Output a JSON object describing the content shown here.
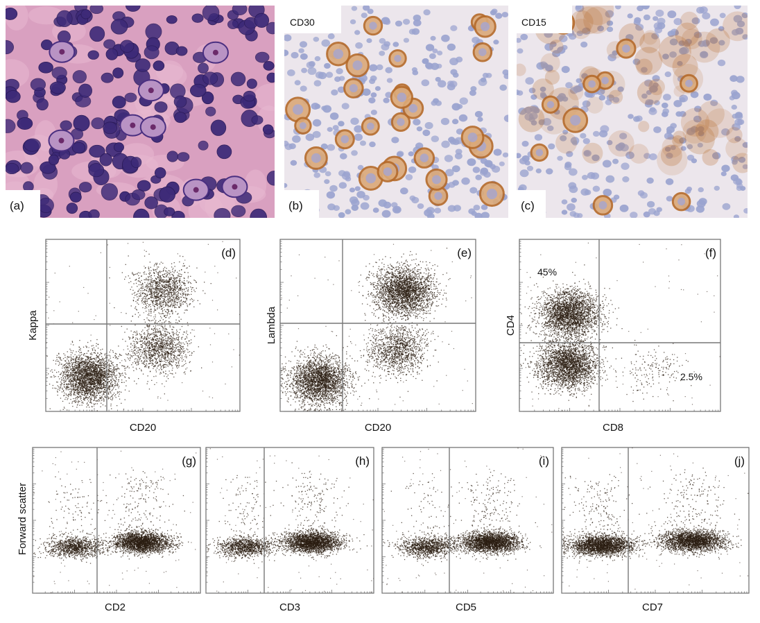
{
  "micrographs": [
    {
      "id": "a",
      "letter": "(a)",
      "stain": "",
      "type": "he"
    },
    {
      "id": "b",
      "letter": "(b)",
      "stain": "CD30",
      "type": "ihc"
    },
    {
      "id": "c",
      "letter": "(c)",
      "stain": "CD15",
      "type": "ihc"
    }
  ],
  "flow_panels": [
    {
      "id": "d",
      "letter": "(d)",
      "xlabel": "CD20",
      "ylabel": "Kappa",
      "quadrant_labels": []
    },
    {
      "id": "e",
      "letter": "(e)",
      "xlabel": "CD20",
      "ylabel": "Lambda",
      "quadrant_labels": []
    },
    {
      "id": "f",
      "letter": "(f)",
      "xlabel": "CD8",
      "ylabel": "CD4",
      "quadrant_labels": [
        "45%",
        "2.5%"
      ]
    },
    {
      "id": "g",
      "letter": "(g)",
      "xlabel": "CD2",
      "ylabel": "Forward scatter",
      "quadrant_labels": []
    },
    {
      "id": "h",
      "letter": "(h)",
      "xlabel": "CD3",
      "ylabel": "",
      "quadrant_labels": []
    },
    {
      "id": "i",
      "letter": "(i)",
      "xlabel": "CD5",
      "ylabel": "",
      "quadrant_labels": []
    },
    {
      "id": "j",
      "letter": "(j)",
      "xlabel": "CD7",
      "ylabel": "",
      "quadrant_labels": []
    }
  ],
  "colors": {
    "he_background": "#d9a0c0",
    "he_nucleus": "#3d2a78",
    "ihc_background": "#ece6ec",
    "ihc_lymphocyte": "#9aa3cf",
    "ihc_stain": "#b56a2a",
    "dot": "#2b1d12"
  },
  "chart_data": [
    {
      "type": "scatter",
      "panel": "d",
      "xlabel": "CD20",
      "ylabel": "Kappa",
      "scale": "log",
      "populations": [
        {
          "x": 0.22,
          "y": 0.2,
          "density": "high"
        },
        {
          "x": 0.58,
          "y": 0.37,
          "density": "medium"
        },
        {
          "x": 0.6,
          "y": 0.7,
          "density": "medium"
        }
      ]
    },
    {
      "type": "scatter",
      "panel": "e",
      "xlabel": "CD20",
      "ylabel": "Lambda",
      "scale": "log",
      "populations": [
        {
          "x": 0.2,
          "y": 0.18,
          "density": "high"
        },
        {
          "x": 0.6,
          "y": 0.36,
          "density": "medium"
        },
        {
          "x": 0.63,
          "y": 0.7,
          "density": "high"
        }
      ]
    },
    {
      "type": "scatter",
      "panel": "f",
      "xlabel": "CD8",
      "ylabel": "CD4",
      "scale": "log",
      "quadrants": {
        "upper_left": "45%",
        "lower_right": "2.5%"
      },
      "populations": [
        {
          "x": 0.25,
          "y": 0.57,
          "density": "high"
        },
        {
          "x": 0.24,
          "y": 0.27,
          "density": "high"
        },
        {
          "x": 0.66,
          "y": 0.24,
          "density": "low"
        }
      ]
    },
    {
      "type": "scatter",
      "panel": "g",
      "xlabel": "CD2",
      "ylabel": "Forward scatter",
      "scale": "log",
      "populations": [
        {
          "x": 0.25,
          "y": 0.32,
          "density": "medium"
        },
        {
          "x": 0.65,
          "y": 0.35,
          "density": "high"
        }
      ]
    },
    {
      "type": "scatter",
      "panel": "h",
      "xlabel": "CD3",
      "ylabel": "Forward scatter",
      "scale": "log",
      "populations": [
        {
          "x": 0.24,
          "y": 0.32,
          "density": "medium"
        },
        {
          "x": 0.63,
          "y": 0.35,
          "density": "high"
        }
      ]
    },
    {
      "type": "scatter",
      "panel": "i",
      "xlabel": "CD5",
      "ylabel": "Forward scatter",
      "scale": "log",
      "populations": [
        {
          "x": 0.27,
          "y": 0.32,
          "density": "medium"
        },
        {
          "x": 0.63,
          "y": 0.35,
          "density": "high"
        }
      ]
    },
    {
      "type": "scatter",
      "panel": "j",
      "xlabel": "CD7",
      "ylabel": "Forward scatter",
      "scale": "log",
      "populations": [
        {
          "x": 0.21,
          "y": 0.33,
          "density": "high"
        },
        {
          "x": 0.7,
          "y": 0.36,
          "density": "high"
        }
      ]
    }
  ]
}
